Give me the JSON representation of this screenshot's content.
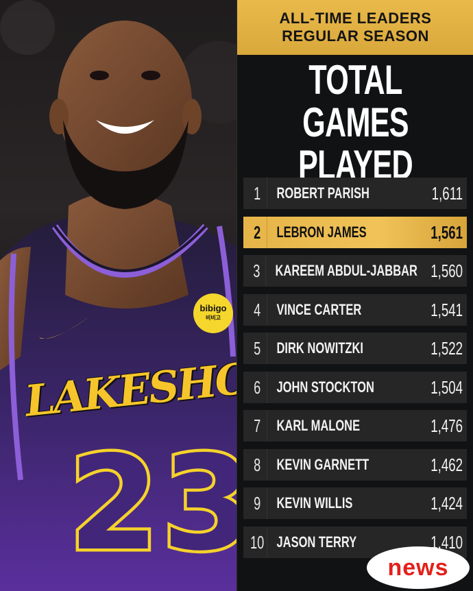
{
  "header": {
    "line1": "ALL-TIME LEADERS",
    "line2": "REGULAR SEASON"
  },
  "title": {
    "line1": "TOTAL",
    "line2": "GAMES PLAYED"
  },
  "photo": {
    "jersey_logo_text": "LAKESHOW",
    "jersey_number": "23",
    "sponsor_main": "bibigo",
    "sponsor_sub": "비비고"
  },
  "leaders": [
    {
      "rank": "1",
      "name": "ROBERT PARISH",
      "games": "1,611",
      "highlight": false
    },
    {
      "rank": "2",
      "name": "LEBRON JAMES",
      "games": "1,561",
      "highlight": true
    },
    {
      "rank": "3",
      "name": "KAREEM ABDUL-JABBAR",
      "games": "1,560",
      "highlight": false
    },
    {
      "rank": "4",
      "name": "VINCE CARTER",
      "games": "1,541",
      "highlight": false
    },
    {
      "rank": "5",
      "name": "DIRK NOWITZKI",
      "games": "1,522",
      "highlight": false
    },
    {
      "rank": "6",
      "name": "JOHN STOCKTON",
      "games": "1,504",
      "highlight": false
    },
    {
      "rank": "7",
      "name": "KARL MALONE",
      "games": "1,476",
      "highlight": false
    },
    {
      "rank": "8",
      "name": "KEVIN GARNETT",
      "games": "1,462",
      "highlight": false
    },
    {
      "rank": "9",
      "name": "KEVIN WILLIS",
      "games": "1,424",
      "highlight": false
    },
    {
      "rank": "10",
      "name": "JASON TERRY",
      "games": "1,410",
      "highlight": false
    }
  ],
  "badge": {
    "text": "news"
  },
  "colors": {
    "gold": "#e6b448",
    "panel_bg": "#111213",
    "row_bg": "#262626",
    "jersey_purple": "#42267a",
    "jersey_yellow": "#f5d22b",
    "badge_red": "#e3201b"
  }
}
